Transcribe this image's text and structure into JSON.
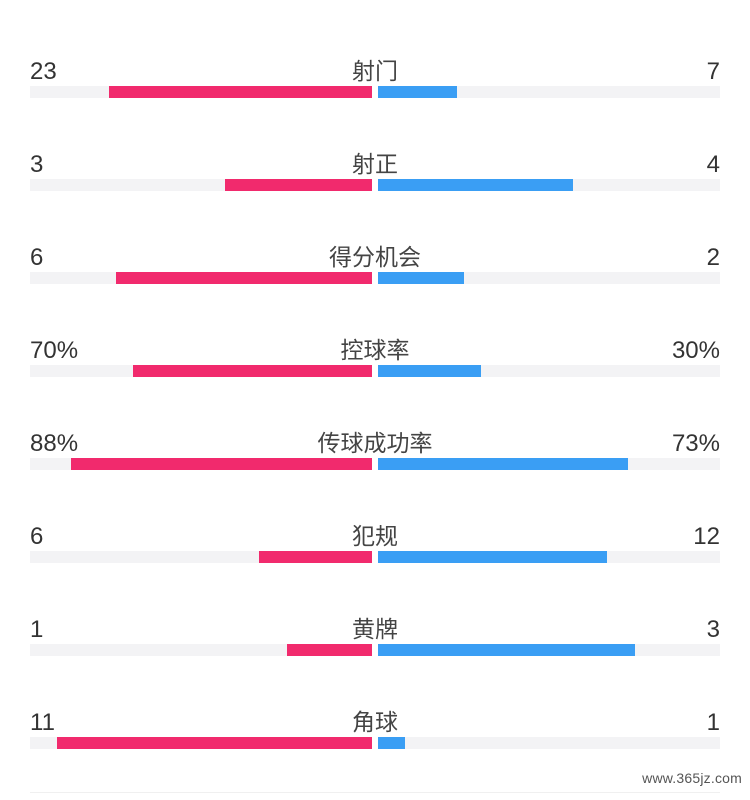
{
  "chart_data": {
    "type": "bar",
    "categories": [
      "射门",
      "射正",
      "得分机会",
      "控球率",
      "传球成功率",
      "犯规",
      "黄牌",
      "角球"
    ],
    "left_labels": [
      "23",
      "3",
      "6",
      "70%",
      "88%",
      "6",
      "1",
      "11"
    ],
    "right_labels": [
      "7",
      "4",
      "2",
      "30%",
      "73%",
      "12",
      "3",
      "1"
    ],
    "left_fill": [
      0.77,
      0.43,
      0.75,
      0.7,
      0.88,
      0.33,
      0.25,
      0.92
    ],
    "right_fill": [
      0.23,
      0.57,
      0.25,
      0.3,
      0.73,
      0.67,
      0.75,
      0.08
    ],
    "colors": {
      "left": "#f12a6d",
      "right": "#3a9ef4",
      "track": "#f3f3f5"
    }
  },
  "watermark": "www.365jz.com"
}
